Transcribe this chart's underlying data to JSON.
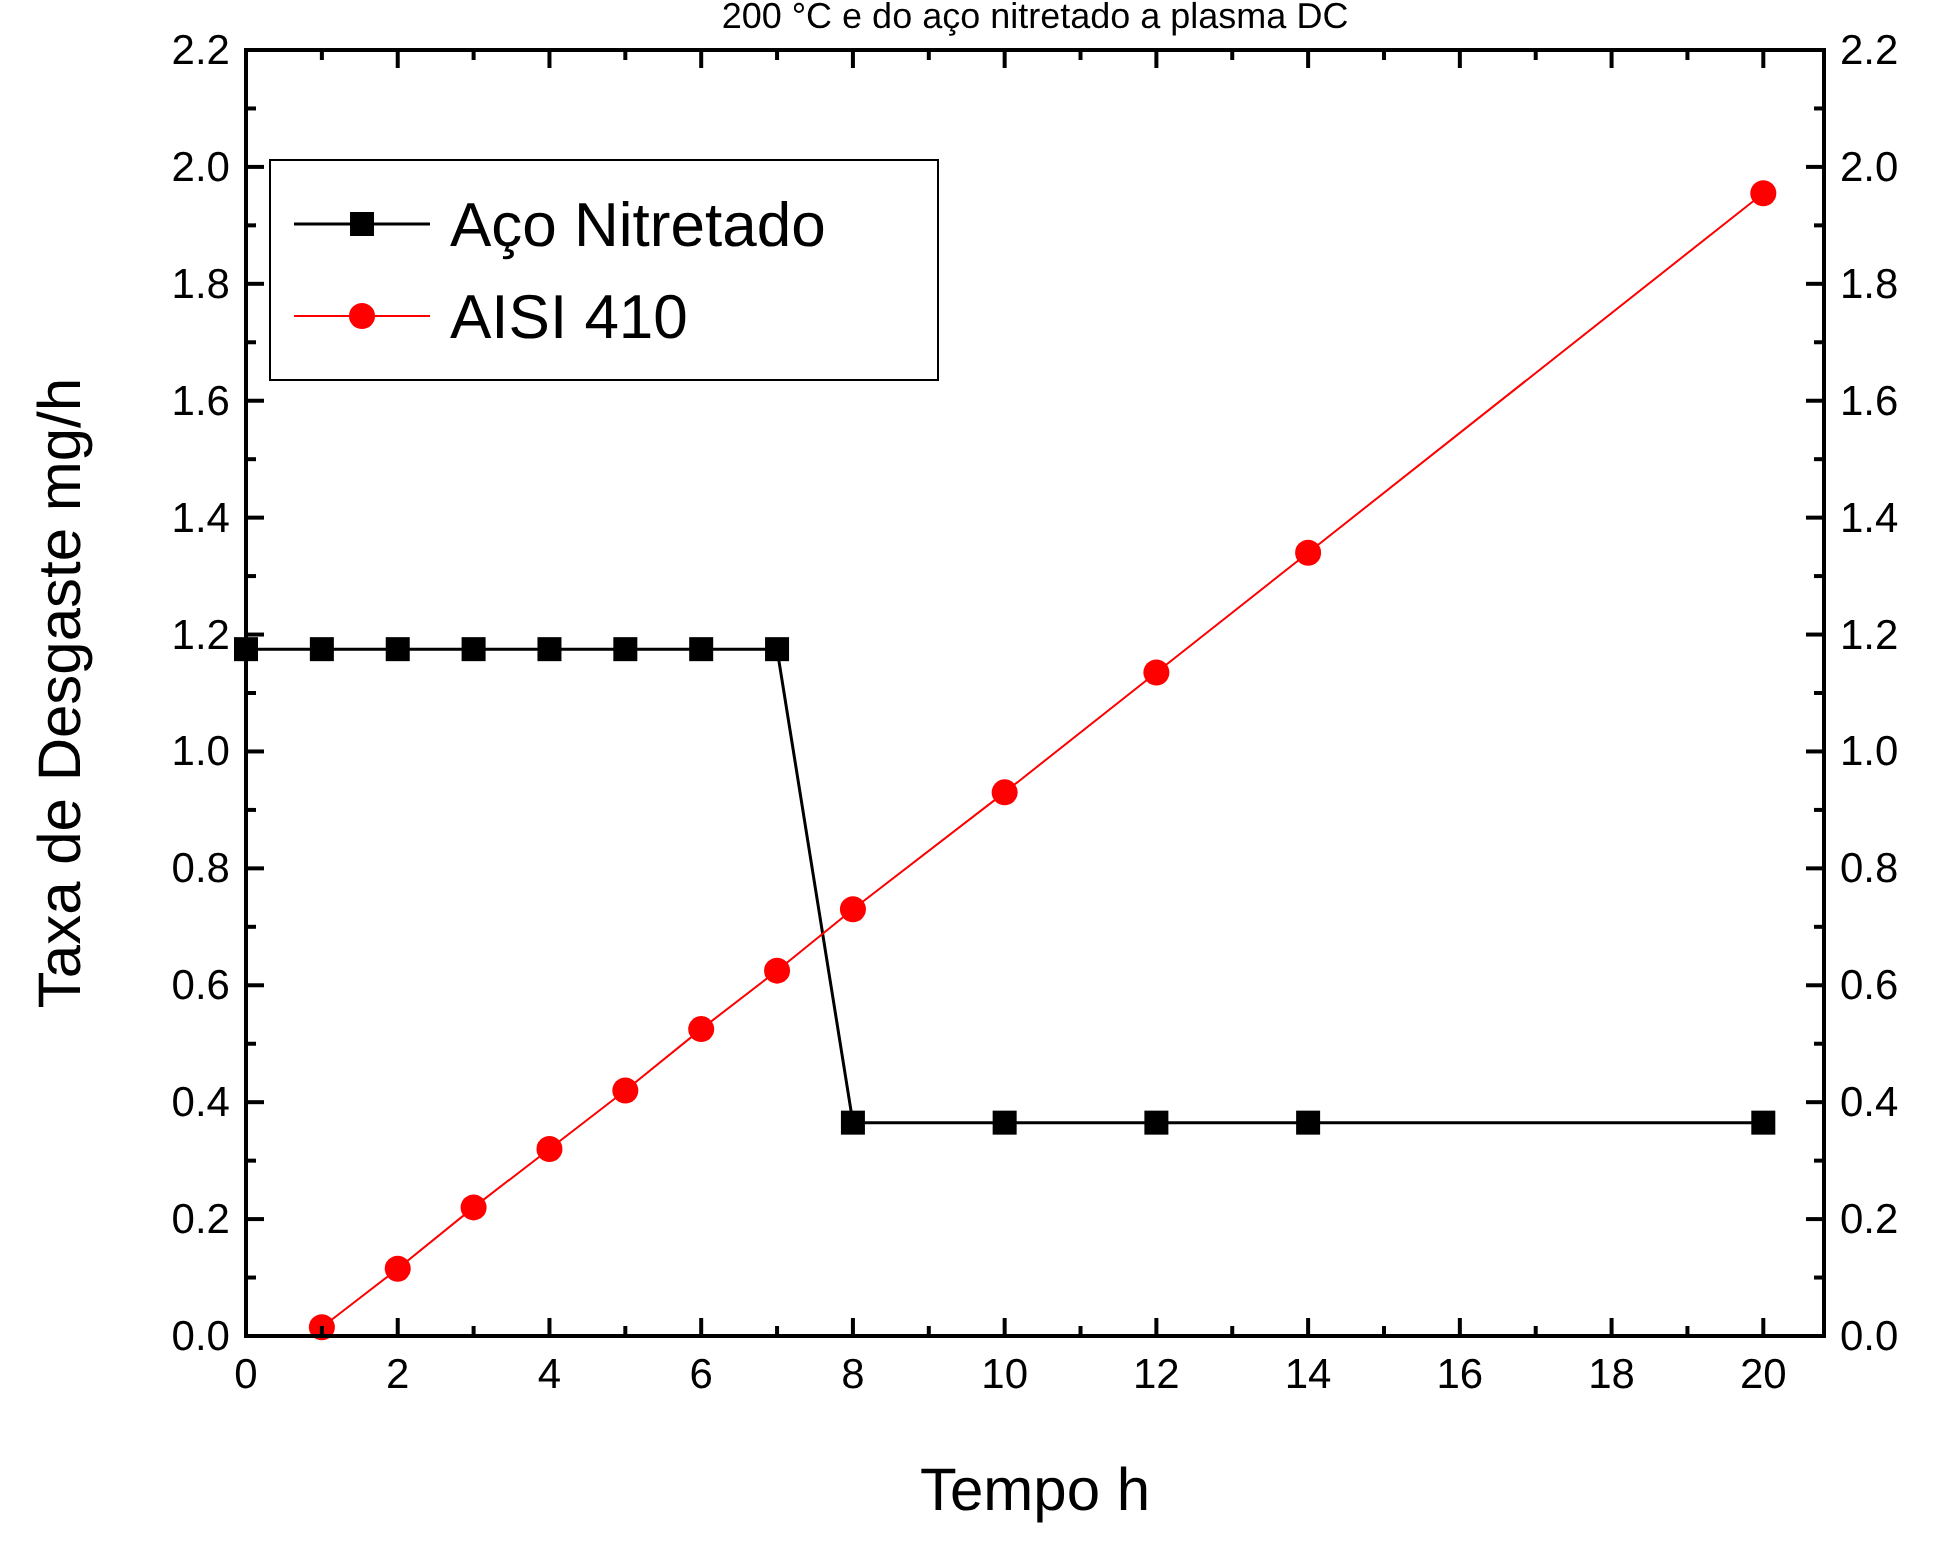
{
  "chart_data": {
    "type": "line",
    "title": "200 °C e do aço nitretado a plasma DC",
    "xlabel": "Tempo h",
    "ylabel": "Taxa de Desgaste mg/h",
    "xlim": [
      0,
      20.8
    ],
    "xticks": [
      0,
      2,
      4,
      6,
      8,
      10,
      12,
      14,
      16,
      18,
      20
    ],
    "ylim": [
      0,
      2.2
    ],
    "yticks": [
      {
        "value": 0,
        "label": "0.0"
      },
      0.2,
      0.4,
      0.6,
      0.8,
      {
        "value": 1,
        "label": "1.0"
      },
      1.2,
      1.4,
      1.6,
      1.8,
      {
        "value": 2,
        "label": "2.0"
      },
      2.2
    ],
    "y2lim": [
      0,
      2.2
    ],
    "y2ticks": [
      {
        "value": 0,
        "label": "0.0"
      },
      0.2,
      0.4,
      0.6,
      0.8,
      {
        "value": 1,
        "label": "1.0"
      },
      1.2,
      1.4,
      1.6,
      1.8,
      {
        "value": 2,
        "label": "2.0"
      },
      2.2
    ],
    "grid": false,
    "legend": "top left",
    "line_style": "solid",
    "series": [
      {
        "name": "Aço Nitretado",
        "color": "#000000",
        "marker": "square",
        "x": [
          0,
          1,
          2,
          3,
          4,
          5,
          6,
          7,
          8,
          10,
          12,
          14,
          20
        ],
        "values": [
          1.175,
          1.175,
          1.175,
          1.175,
          1.175,
          1.175,
          1.175,
          1.175,
          0.365,
          0.365,
          0.365,
          0.365,
          0.365
        ]
      },
      {
        "name": "AISI 410",
        "color": "#ff0000",
        "marker": "circle",
        "x": [
          1,
          2,
          3,
          4,
          5,
          6,
          7,
          8,
          10,
          12,
          14,
          20
        ],
        "values": [
          0.015,
          0.115,
          0.22,
          0.32,
          0.42,
          0.525,
          0.625,
          0.73,
          0.93,
          1.135,
          1.34,
          1.955
        ]
      }
    ]
  }
}
